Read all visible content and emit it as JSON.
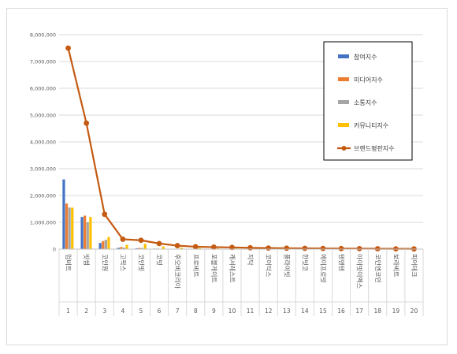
{
  "chart_data": {
    "type": "bar",
    "categories": [
      "업비트",
      "빗썸",
      "코인원",
      "고팍스",
      "코인빗",
      "코빗",
      "후오비코리아",
      "프로비트",
      "포블게이트",
      "캐셔레스트",
      "지닥",
      "코어닥스",
      "플라이빗",
      "한빗코",
      "에이프로빗",
      "텐앤텐",
      "아이빗이엑스",
      "코인엔코인",
      "보라비트",
      "피어테크"
    ],
    "ranks": [
      "1",
      "2",
      "3",
      "4",
      "5",
      "6",
      "7",
      "8",
      "9",
      "10",
      "11",
      "12",
      "13",
      "14",
      "15",
      "16",
      "17",
      "18",
      "19",
      "20"
    ],
    "ylim": [
      0,
      8000000
    ],
    "yticks": [
      "8,000,000",
      "7,000,000",
      "6,000,000",
      "5,000,000",
      "4,000,000",
      "3,000,000",
      "2,000,000",
      "1,000,000",
      "0"
    ],
    "grid": true,
    "legend_position": "top-right",
    "series": [
      {
        "name": "참여지수",
        "kind": "bar",
        "color": "#4472c4",
        "values": [
          2600000,
          1200000,
          230000,
          50000,
          30000,
          20000,
          15000,
          10000,
          8000,
          6000,
          5000,
          4000,
          3000,
          2500,
          2000,
          1500,
          1000,
          800,
          600,
          500
        ]
      },
      {
        "name": "미디어지수",
        "kind": "bar",
        "color": "#ed7d31",
        "values": [
          1700000,
          1250000,
          300000,
          80000,
          50000,
          20000,
          12000,
          9000,
          7000,
          5000,
          4000,
          3000,
          2500,
          2000,
          1500,
          1200,
          900,
          700,
          500,
          400
        ]
      },
      {
        "name": "소통지수",
        "kind": "bar",
        "color": "#a5a5a5",
        "values": [
          1550000,
          1000000,
          350000,
          60000,
          40000,
          15000,
          10000,
          8000,
          6000,
          5000,
          4000,
          3000,
          2000,
          1800,
          1500,
          1000,
          800,
          600,
          400,
          300
        ]
      },
      {
        "name": "커뮤니티지수",
        "kind": "bar",
        "color": "#ffc000",
        "values": [
          1550000,
          1200000,
          450000,
          160000,
          200000,
          100000,
          60000,
          40000,
          30000,
          25000,
          20000,
          15000,
          12000,
          10000,
          8000,
          6000,
          5000,
          4000,
          3000,
          2000
        ]
      },
      {
        "name": "브랜드평판지수",
        "kind": "line",
        "color": "#c55a11",
        "values": [
          7500000,
          4700000,
          1300000,
          370000,
          330000,
          210000,
          130000,
          90000,
          75000,
          65000,
          50000,
          40000,
          35000,
          30000,
          25000,
          20000,
          18000,
          15000,
          12000,
          10000
        ]
      }
    ]
  }
}
